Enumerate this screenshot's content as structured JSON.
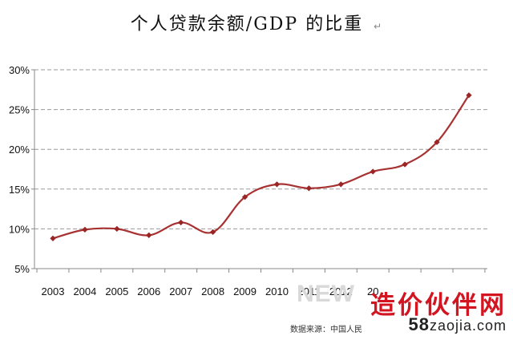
{
  "chart_data": {
    "type": "line",
    "title": "个人贷款余额/GDP 的比重",
    "xlabel": "",
    "ylabel": "",
    "x": [
      "2003",
      "2004",
      "2005",
      "2006",
      "2007",
      "2008",
      "2009",
      "2010",
      "2011",
      "2012",
      "20",
      "",
      "",
      ""
    ],
    "series": [
      {
        "name": "个人贷款余额/GDP",
        "values": [
          8.8,
          9.9,
          10.0,
          9.2,
          10.8,
          9.6,
          14.0,
          15.6,
          15.1,
          15.6,
          17.2,
          18.1,
          20.9,
          26.8
        ]
      }
    ],
    "y_ticks": [
      "5%",
      "10%",
      "15%",
      "20%",
      "25%",
      "30%"
    ],
    "ylim": [
      5,
      30
    ],
    "grid": "horizontal dashed",
    "legend": "none",
    "colors": {
      "line": "#a83232",
      "marker": "#9b2424",
      "grid": "#9a9a9a",
      "axis": "#888888"
    }
  },
  "title_return_mark": "↵",
  "watermark": {
    "brand": "造价伙伴网",
    "url_prefix": "58",
    "url_rest": "zaojia.com",
    "faint_text": "NEW"
  },
  "source_note": "数据来源：中国人民"
}
